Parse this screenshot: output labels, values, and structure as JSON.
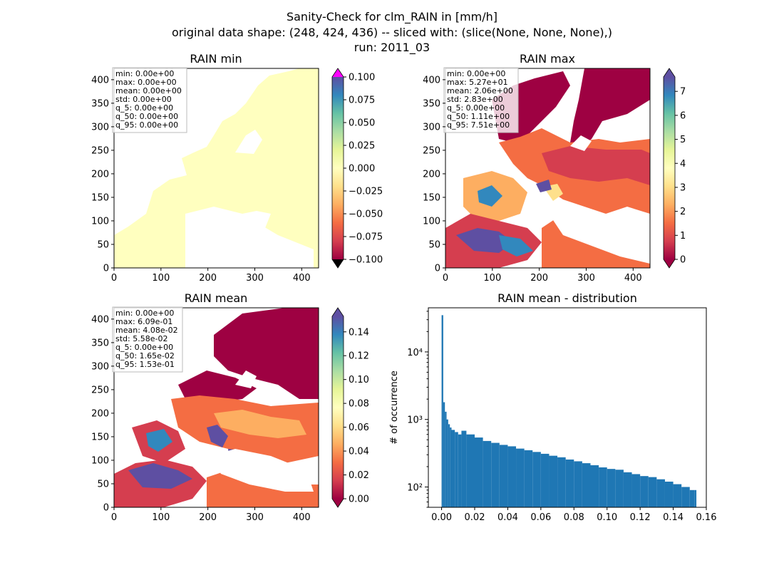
{
  "figure": {
    "suptitle_lines": [
      "Sanity-Check for clm_RAIN in [mm/h]",
      "original data shape: (248, 424, 436) -- sliced with: (slice(None, None, None),)",
      "run: 2011_03"
    ]
  },
  "chart_data": [
    {
      "type": "heatmap",
      "title": "RAIN min",
      "xlim": [
        0,
        436
      ],
      "ylim": [
        0,
        424
      ],
      "x_ticks": [
        "0",
        "100",
        "200",
        "300",
        "400"
      ],
      "y_ticks": [
        "0",
        "50",
        "100",
        "150",
        "200",
        "250",
        "300",
        "350",
        "400"
      ],
      "colorbar": {
        "cmap": "Spectral",
        "range": [
          -0.1,
          0.1
        ],
        "ticks": [
          "0.100",
          "0.075",
          "0.050",
          "0.025",
          "0.000",
          "−0.025",
          "−0.050",
          "−0.075",
          "−0.100"
        ],
        "extend_max_color": "#ff00ff",
        "extend_min_color": "#000000"
      },
      "stats": [
        "min: 0.00e+00",
        "max: 0.00e+00",
        "mean: 0.00e+00",
        "std: 0.00e+00",
        "q_5: 0.00e+00",
        "q_50: 0.00e+00",
        "q_95: 0.00e+00"
      ],
      "field_color": "#ffffbf"
    },
    {
      "type": "heatmap",
      "title": "RAIN max",
      "xlim": [
        0,
        436
      ],
      "ylim": [
        0,
        424
      ],
      "x_ticks": [
        "0",
        "100",
        "200",
        "300",
        "400"
      ],
      "y_ticks": [
        "0",
        "50",
        "100",
        "150",
        "200",
        "250",
        "300",
        "350",
        "400"
      ],
      "colorbar": {
        "cmap": "Spectral",
        "range": [
          0,
          7.6
        ],
        "ticks": [
          "7",
          "6",
          "5",
          "4",
          "3",
          "2",
          "1",
          "0"
        ],
        "extend_max_color": "#5e4fa2",
        "extend_min_color": "#9e0142"
      },
      "stats": [
        "min: 0.00e+00",
        "max: 5.27e+01",
        "mean: 2.06e+00",
        "std: 2.83e+00",
        "q_5: 0.00e+00",
        "q_50: 1.11e+00",
        "q_95: 7.51e+00"
      ]
    },
    {
      "type": "heatmap",
      "title": "RAIN mean",
      "xlim": [
        0,
        436
      ],
      "ylim": [
        0,
        424
      ],
      "x_ticks": [
        "0",
        "100",
        "200",
        "300",
        "400"
      ],
      "y_ticks": [
        "0",
        "50",
        "100",
        "150",
        "200",
        "250",
        "300",
        "350",
        "400"
      ],
      "colorbar": {
        "cmap": "Spectral",
        "range": [
          0,
          0.153
        ],
        "ticks": [
          "0.14",
          "0.12",
          "0.10",
          "0.08",
          "0.06",
          "0.04",
          "0.02",
          "0.00"
        ],
        "extend_max_color": "#5e4fa2",
        "extend_min_color": "#9e0142"
      },
      "stats": [
        "min: 0.00e+00",
        "max: 6.09e-01",
        "mean: 4.08e-02",
        "std: 5.58e-02",
        "q_5: 0.00e+00",
        "q_50: 1.65e-02",
        "q_95: 1.53e-01"
      ]
    },
    {
      "type": "bar",
      "title": "RAIN mean - distribution",
      "ylabel": "# of occurrence",
      "yscale": "log",
      "xlim": [
        -0.008,
        0.16
      ],
      "ylim": [
        50,
        45000
      ],
      "x_ticks": [
        "0.00",
        "0.02",
        "0.04",
        "0.06",
        "0.08",
        "0.10",
        "0.12",
        "0.14",
        "0.16"
      ],
      "y_ticks": [
        "10⁴",
        "10³",
        "10²"
      ],
      "bar_color": "#1f77b4",
      "x": [
        0.0,
        0.001,
        0.002,
        0.003,
        0.004,
        0.005,
        0.006,
        0.008,
        0.01,
        0.012,
        0.015,
        0.02,
        0.025,
        0.03,
        0.035,
        0.04,
        0.045,
        0.05,
        0.055,
        0.06,
        0.065,
        0.07,
        0.075,
        0.08,
        0.085,
        0.09,
        0.095,
        0.1,
        0.105,
        0.11,
        0.115,
        0.12,
        0.125,
        0.13,
        0.135,
        0.14,
        0.145,
        0.15,
        0.153
      ],
      "counts": [
        35000,
        1800,
        1300,
        1000,
        850,
        760,
        700,
        650,
        600,
        680,
        600,
        540,
        480,
        450,
        420,
        400,
        370,
        350,
        330,
        310,
        290,
        275,
        255,
        240,
        225,
        210,
        195,
        185,
        180,
        165,
        155,
        145,
        140,
        130,
        120,
        110,
        100,
        90,
        90
      ]
    }
  ]
}
